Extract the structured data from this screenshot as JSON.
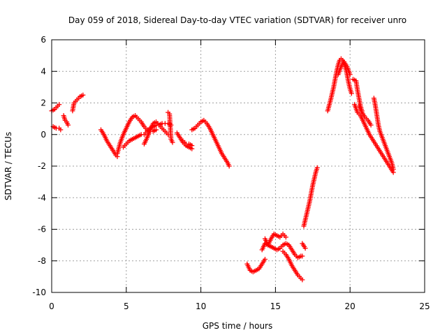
{
  "chart_data": {
    "type": "scatter",
    "title": "Day 059 of 2018, Sidereal Day-to-day VTEC variation (SDTVAR) for receiver unro",
    "xlabel": "GPS time / hours",
    "ylabel": "SDTVAR / TECUs",
    "xlim": [
      0,
      25
    ],
    "ylim": [
      -10,
      6
    ],
    "xticks": [
      0,
      5,
      10,
      15,
      20,
      25
    ],
    "yticks": [
      -10,
      -8,
      -6,
      -4,
      -2,
      0,
      2,
      4,
      6
    ],
    "grid": true,
    "marker": "+",
    "color": "#ff0000",
    "segments": [
      {
        "x": [
          0.0,
          0.2,
          0.4,
          0.5
        ],
        "y": [
          1.5,
          1.6,
          1.8,
          1.9
        ]
      },
      {
        "x": [
          0.1,
          0.3,
          0.5,
          0.6
        ],
        "y": [
          0.5,
          0.4,
          0.4,
          0.3
        ]
      },
      {
        "x": [
          0.8,
          0.9,
          1.0,
          1.1
        ],
        "y": [
          1.2,
          0.9,
          0.8,
          0.6
        ]
      },
      {
        "x": [
          1.4,
          1.5,
          1.7,
          1.9,
          2.1
        ],
        "y": [
          1.5,
          2.0,
          2.2,
          2.4,
          2.5
        ]
      },
      {
        "x": [
          3.3,
          3.5,
          3.7,
          3.9,
          4.1,
          4.3,
          4.4
        ],
        "y": [
          0.3,
          0.0,
          -0.4,
          -0.7,
          -1.0,
          -1.3,
          -1.4
        ]
      },
      {
        "x": [
          4.4,
          4.6,
          4.8,
          5.0,
          5.2,
          5.4,
          5.6,
          5.8,
          6.0,
          6.2,
          6.4,
          6.6,
          6.8,
          7.0
        ],
        "y": [
          -1.2,
          -0.5,
          0.0,
          0.4,
          0.8,
          1.1,
          1.2,
          1.0,
          0.8,
          0.5,
          0.3,
          0.2,
          0.2,
          0.3
        ]
      },
      {
        "x": [
          4.8,
          5.0,
          5.2,
          5.4,
          5.6,
          5.8,
          6.0,
          6.2,
          6.4,
          6.6,
          6.8,
          7.0,
          7.2,
          7.4,
          7.6,
          7.8,
          8.0
        ],
        "y": [
          -0.8,
          -0.6,
          -0.4,
          -0.3,
          -0.2,
          -0.1,
          0.0,
          0.0,
          0.2,
          0.4,
          0.5,
          0.6,
          0.6,
          0.7,
          0.7,
          0.7,
          0.6
        ]
      },
      {
        "x": [
          6.2,
          6.4,
          6.6,
          6.8,
          7.0,
          7.2,
          7.4,
          7.6,
          7.8
        ],
        "y": [
          -0.6,
          -0.2,
          0.3,
          0.7,
          0.8,
          0.6,
          0.4,
          0.2,
          0.0
        ]
      },
      {
        "x": [
          7.8,
          7.9,
          8.0,
          8.1
        ],
        "y": [
          1.4,
          1.3,
          -0.3,
          -0.5
        ]
      },
      {
        "x": [
          8.4,
          8.6,
          8.8,
          9.0,
          9.2,
          9.4
        ],
        "y": [
          0.1,
          -0.2,
          -0.5,
          -0.7,
          -0.8,
          -0.9
        ]
      },
      {
        "x": [
          8.8,
          9.0,
          9.2,
          9.4
        ],
        "y": [
          -0.4,
          -0.6,
          -0.6,
          -0.7
        ]
      },
      {
        "x": [
          9.4,
          9.6,
          9.8,
          10.0,
          10.2,
          10.4,
          10.6,
          10.8,
          11.0,
          11.2,
          11.4,
          11.6,
          11.8,
          11.9
        ],
        "y": [
          0.3,
          0.4,
          0.6,
          0.8,
          0.9,
          0.7,
          0.4,
          0.0,
          -0.4,
          -0.8,
          -1.2,
          -1.5,
          -1.8,
          -2.0
        ]
      },
      {
        "x": [
          13.1,
          13.3,
          13.5,
          13.7,
          13.9,
          14.1,
          14.3
        ],
        "y": [
          -8.2,
          -8.6,
          -8.7,
          -8.6,
          -8.5,
          -8.2,
          -7.9
        ]
      },
      {
        "x": [
          14.1,
          14.3,
          14.5,
          14.7,
          14.9,
          15.1,
          15.3,
          15.5,
          15.7,
          15.9,
          16.1,
          16.3,
          16.5,
          16.7,
          16.8
        ],
        "y": [
          -7.3,
          -6.9,
          -7.0,
          -7.1,
          -7.2,
          -7.3,
          -7.2,
          -7.0,
          -6.9,
          -7.0,
          -7.3,
          -7.6,
          -7.8,
          -7.7,
          -7.7
        ]
      },
      {
        "x": [
          14.3,
          14.5,
          14.7,
          14.9,
          15.1,
          15.3,
          15.5,
          15.7
        ],
        "y": [
          -6.6,
          -7.0,
          -6.6,
          -6.3,
          -6.4,
          -6.5,
          -6.3,
          -6.5
        ]
      },
      {
        "x": [
          15.5,
          15.7,
          15.9,
          16.1,
          16.3,
          16.5,
          16.7,
          16.8
        ],
        "y": [
          -7.4,
          -7.6,
          -7.9,
          -8.3,
          -8.6,
          -8.9,
          -9.1,
          -9.2
        ]
      },
      {
        "x": [
          16.8,
          17.0
        ],
        "y": [
          -6.9,
          -7.2
        ]
      },
      {
        "x": [
          16.9,
          17.0,
          17.1,
          17.2,
          17.3,
          17.4,
          17.5,
          17.6,
          17.7,
          17.8
        ],
        "y": [
          -5.8,
          -5.4,
          -5.0,
          -4.6,
          -4.2,
          -3.7,
          -3.2,
          -2.8,
          -2.4,
          -2.1
        ]
      },
      {
        "x": [
          18.5,
          18.7,
          18.9,
          19.0,
          19.1,
          19.2,
          19.3,
          19.4,
          19.5,
          19.6,
          19.7,
          19.8,
          19.9,
          20.0,
          20.1
        ],
        "y": [
          1.5,
          2.2,
          3.0,
          3.5,
          4.0,
          4.4,
          4.7,
          4.8,
          4.7,
          4.5,
          4.2,
          3.8,
          3.3,
          2.9,
          2.6
        ]
      },
      {
        "x": [
          19.2,
          19.4,
          19.6,
          19.8,
          20.0
        ],
        "y": [
          3.8,
          4.3,
          4.6,
          4.3,
          3.8
        ]
      },
      {
        "x": [
          20.2,
          20.4,
          20.5,
          20.6,
          20.7,
          20.8
        ],
        "y": [
          3.5,
          3.4,
          2.8,
          2.3,
          1.8,
          1.5
        ]
      },
      {
        "x": [
          20.3,
          20.5,
          20.7,
          20.9,
          21.1,
          21.3,
          21.5,
          21.7,
          21.9,
          22.1,
          22.3,
          22.5,
          22.7,
          22.9
        ],
        "y": [
          1.9,
          1.4,
          1.2,
          0.8,
          0.4,
          0.0,
          -0.3,
          -0.6,
          -0.9,
          -1.2,
          -1.5,
          -1.8,
          -2.1,
          -2.4
        ]
      },
      {
        "x": [
          21.6,
          21.7,
          21.8,
          21.9,
          22.0,
          22.2,
          22.4,
          22.6,
          22.8,
          22.9
        ],
        "y": [
          2.3,
          1.8,
          1.2,
          0.6,
          0.2,
          -0.3,
          -0.8,
          -1.3,
          -1.8,
          -2.2
        ]
      },
      {
        "x": [
          20.6,
          20.8,
          21.0,
          21.2,
          21.4
        ],
        "y": [
          1.8,
          1.4,
          1.1,
          0.9,
          0.6
        ]
      }
    ]
  }
}
